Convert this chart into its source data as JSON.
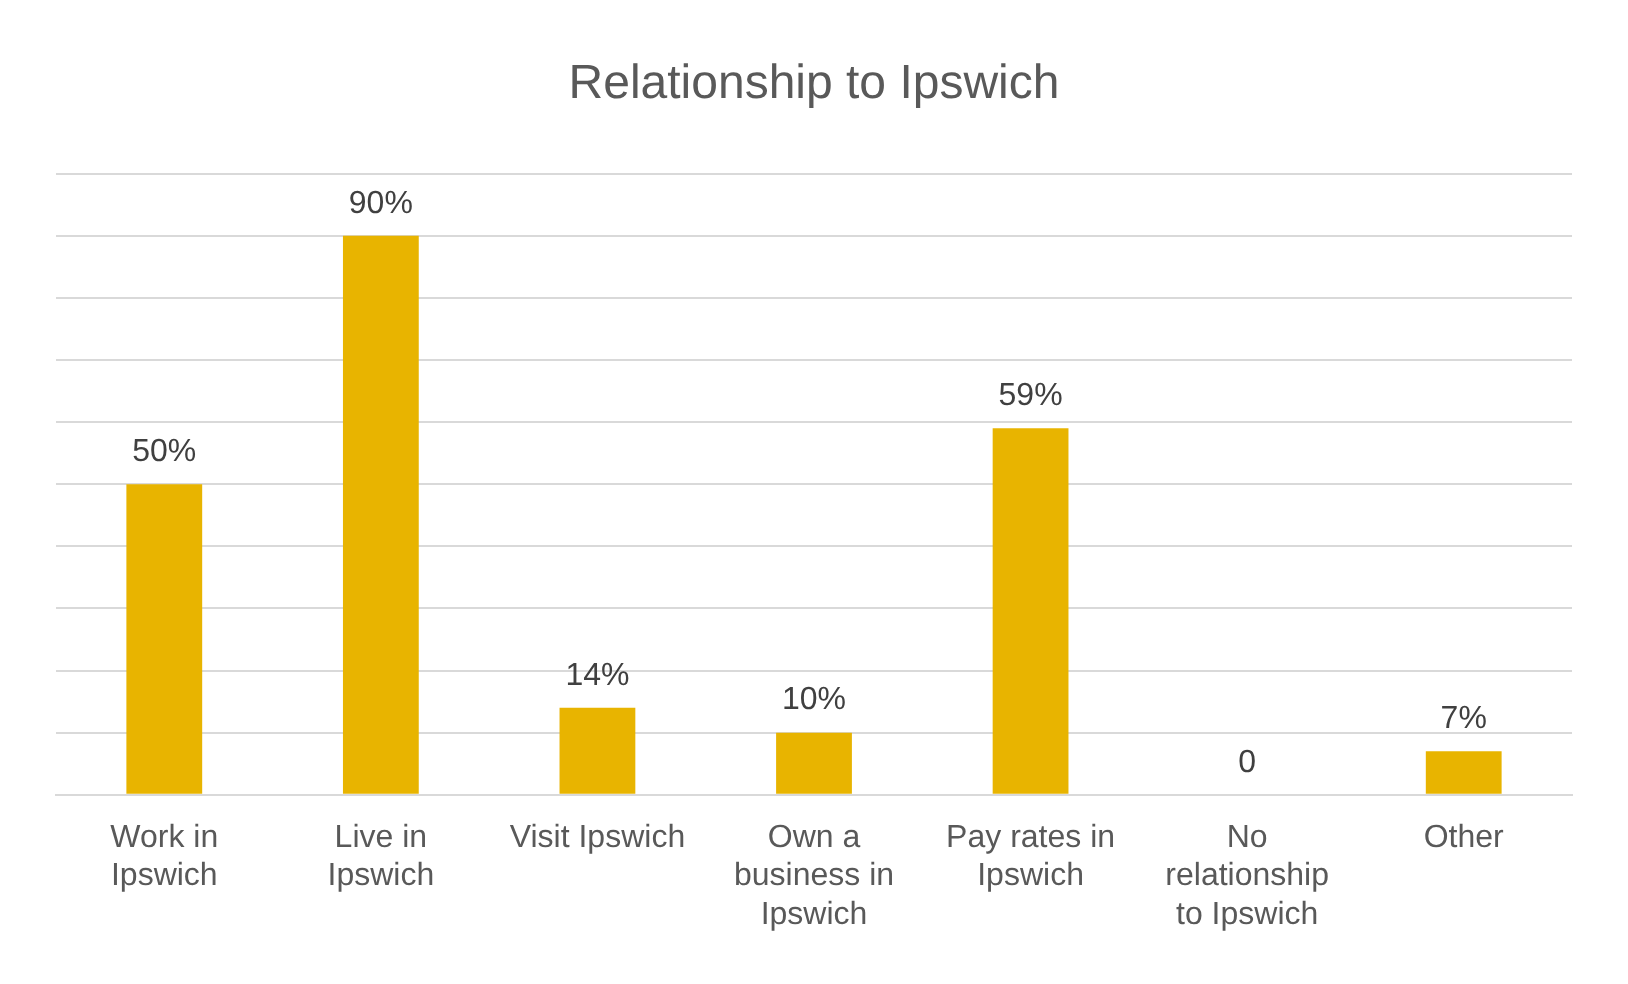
{
  "chart_data": {
    "type": "bar",
    "title": "Relationship to Ipswich",
    "categories": [
      "Work in Ipswich",
      "Live in Ipswich",
      "Visit Ipswich",
      "Own a business in Ipswich",
      "Pay rates in Ipswich",
      "No relationship to Ipswich",
      "Other"
    ],
    "values": [
      50,
      90,
      14,
      10,
      59,
      0,
      7
    ],
    "value_labels": [
      "50%",
      "90%",
      "14%",
      "10%",
      "59%",
      "0",
      "7%"
    ],
    "color": "#e8b400",
    "ylim": [
      0,
      100
    ],
    "yticks": [
      {
        "value": 0,
        "label": null
      },
      {
        "value": 10,
        "label": null
      },
      {
        "value": 20,
        "label": null
      },
      {
        "value": 30,
        "label": null
      },
      {
        "value": 40,
        "label": null
      },
      {
        "value": 50,
        "label": null
      },
      {
        "value": 60,
        "label": null
      },
      {
        "value": 70,
        "label": null
      },
      {
        "value": 80,
        "label": null
      },
      {
        "value": 90,
        "label": null
      },
      {
        "value": 100,
        "label": null
      }
    ],
    "tick_labels": "x",
    "grid": "y",
    "legend": false
  }
}
